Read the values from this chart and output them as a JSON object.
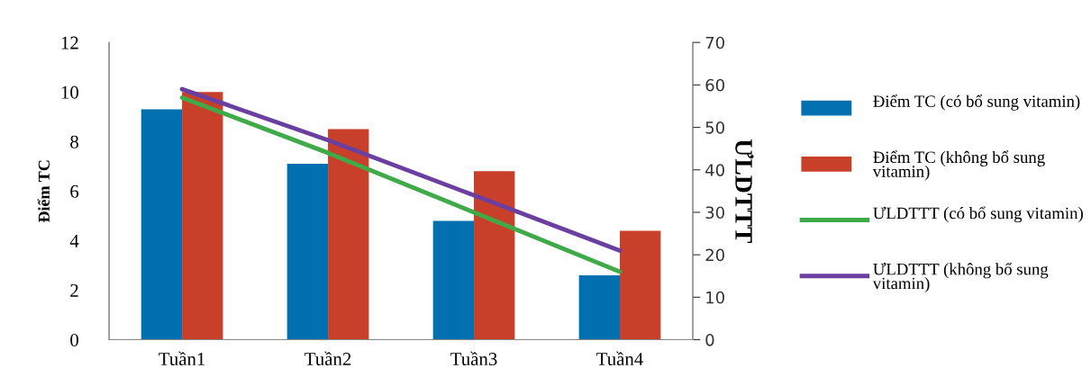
{
  "chart_data": {
    "type": "bar",
    "categories": [
      "Tuần1",
      "Tuần2",
      "Tuần3",
      "Tuần4"
    ],
    "ylabel": "Điểm TC",
    "y2label": "ƯLDTTT",
    "ylim": [
      0,
      12
    ],
    "yticks": [
      0,
      2,
      4,
      6,
      8,
      10,
      12
    ],
    "y2lim": [
      0,
      70
    ],
    "y2ticks": [
      0,
      10,
      20,
      30,
      40,
      50,
      60,
      70
    ],
    "grid": false,
    "legend": "right",
    "series": [
      {
        "name": "Điểm TC (có bổ sung vitamin)",
        "color": "#0070b0",
        "values": [
          9.3,
          7.1,
          4.8,
          2.6
        ]
      },
      {
        "name": "Điểm TC (không bổ sung vitamin)",
        "color": "#c8402a",
        "values": [
          10,
          8.5,
          6.8,
          4.4
        ]
      },
      {
        "name": "ƯLDTTT (có bổ sung vitamin)",
        "type": "line",
        "axis": "y2",
        "color": "#3faa48",
        "values": [
          57,
          44,
          30,
          16
        ]
      },
      {
        "name": "ƯLDTTT (không bổ sung vitamin)",
        "type": "line",
        "axis": "y2",
        "color": "#6a3fa0",
        "values": [
          59,
          47,
          34,
          21
        ]
      }
    ]
  }
}
